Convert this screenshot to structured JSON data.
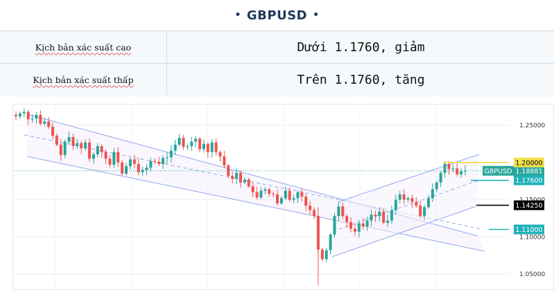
{
  "header": {
    "dot_left": "•",
    "symbol": "GBPUSD",
    "dot_right": "•"
  },
  "scenarios": [
    {
      "label": "Kịch bản xác suất cao",
      "value": "Dưới 1.1760, giảm"
    },
    {
      "label": "Kịch bản xác suất thấp",
      "value": "Trên 1.1760, tăng"
    }
  ],
  "chart_data": {
    "type": "candlestick",
    "symbol": "GBPUSD",
    "y_ticks": [
      "1.25000",
      "1.15000",
      "1.10000",
      "1.05000"
    ],
    "ylim": [
      1.04,
      1.27
    ],
    "current_price": {
      "label": "GBPUSD",
      "value": "1.18881",
      "color": "#26a69a"
    },
    "levels": [
      {
        "value": "1.20000",
        "color": "#f4e04d",
        "text_color": "#000000"
      },
      {
        "value": "1.17600",
        "color": "#20b2b8",
        "text_color": "#ffffff"
      },
      {
        "value": "1.14250",
        "color": "#000000",
        "text_color": "#ffffff"
      },
      {
        "value": "1.11000",
        "color": "#20b2b8",
        "text_color": "#ffffff"
      }
    ],
    "close_series": [
      1.262,
      1.266,
      1.268,
      1.258,
      1.259,
      1.264,
      1.252,
      1.255,
      1.248,
      1.236,
      1.224,
      1.21,
      1.228,
      1.234,
      1.222,
      1.226,
      1.219,
      1.227,
      1.205,
      1.211,
      1.222,
      1.214,
      1.205,
      1.197,
      1.214,
      1.2,
      1.185,
      1.195,
      1.204,
      1.198,
      1.187,
      1.19,
      1.193,
      1.202,
      1.201,
      1.198,
      1.206,
      1.207,
      1.216,
      1.224,
      1.233,
      1.221,
      1.222,
      1.228,
      1.232,
      1.218,
      1.225,
      1.214,
      1.227,
      1.214,
      1.208,
      1.196,
      1.182,
      1.178,
      1.186,
      1.173,
      1.177,
      1.168,
      1.16,
      1.153,
      1.162,
      1.164,
      1.158,
      1.157,
      1.145,
      1.152,
      1.162,
      1.15,
      1.152,
      1.16,
      1.154,
      1.142,
      1.136,
      1.128,
      1.083,
      1.07,
      1.082,
      1.103,
      1.128,
      1.141,
      1.128,
      1.12,
      1.111,
      1.107,
      1.118,
      1.114,
      1.122,
      1.13,
      1.128,
      1.134,
      1.119,
      1.122,
      1.136,
      1.15,
      1.157,
      1.15,
      1.152,
      1.147,
      1.142,
      1.128,
      1.14,
      1.152,
      1.164,
      1.173,
      1.186,
      1.198,
      1.191,
      1.192,
      1.184,
      1.188,
      1.189
    ],
    "colors": {
      "up": "#26a69a",
      "down": "#ef5350",
      "channel": "#8ea8ec",
      "grid": "#eeeeee"
    }
  }
}
